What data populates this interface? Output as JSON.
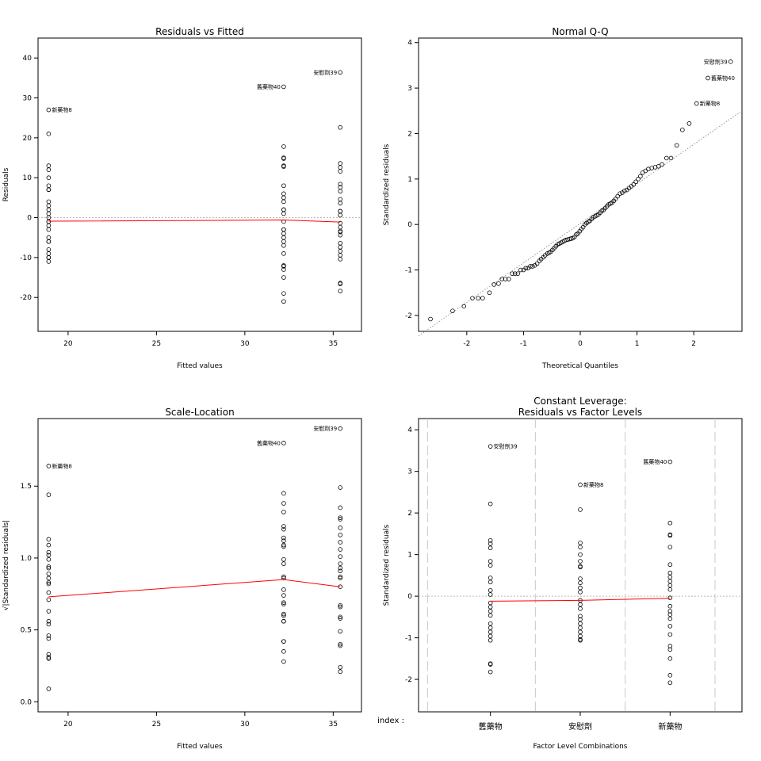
{
  "chart_data": [
    {
      "id": "rvf",
      "type": "scatter",
      "title": "Residuals vs Fitted",
      "xlabel": "Fitted values",
      "ylabel": "Residuals",
      "xlim": [
        18.3,
        36.6
      ],
      "ylim": [
        -28.5,
        45.0
      ],
      "xticks": [
        20,
        25,
        30,
        35
      ],
      "yticks": [
        -20,
        -10,
        0,
        10,
        20,
        30,
        40
      ],
      "refline": {
        "y": 0,
        "style": "dotted",
        "color": "#bbbbbb"
      },
      "series": [
        {
          "x": 18.9,
          "values": [
            27.0,
            21.0,
            13.0,
            12.0,
            10.0,
            8.0,
            7.0,
            7.0,
            4.0,
            3.0,
            2.0,
            1.0,
            0.0,
            -1.0,
            -1.0,
            -2.0,
            -3.0,
            -5.0,
            -6.0,
            -6.0,
            -8.0,
            -9.0,
            -10.0,
            -10.0,
            -11.0
          ]
        },
        {
          "x": 32.2,
          "values": [
            32.8,
            17.8,
            15.0,
            14.8,
            13.0,
            12.8,
            8.0,
            6.0,
            5.0,
            4.0,
            2.0,
            2.0,
            1.0,
            -1.0,
            -3.0,
            -3.0,
            -4.0,
            -5.0,
            -6.0,
            -7.0,
            -9.0,
            -12.0,
            -12.2,
            -13.0,
            -15.0,
            -19.0,
            -21.0
          ]
        },
        {
          "x": 35.4,
          "values": [
            36.4,
            22.6,
            13.6,
            12.6,
            11.6,
            8.4,
            7.6,
            6.6,
            4.6,
            3.6,
            1.6,
            1.6,
            0.6,
            -1.4,
            -2.4,
            -3.4,
            -3.6,
            -4.4,
            -6.4,
            -7.4,
            -8.4,
            -9.4,
            -10.4,
            -16.4,
            -16.6,
            -18.4
          ]
        }
      ],
      "smooth": {
        "x": [
          18.9,
          32.2,
          35.4
        ],
        "y": [
          -0.9,
          -0.6,
          -1.1
        ],
        "color": "#ff0000"
      },
      "labels": [
        {
          "text": "新藥物8",
          "x": 18.9,
          "y": 27.0,
          "side": "right"
        },
        {
          "text": "舊藥物40",
          "x": 32.2,
          "y": 32.8,
          "side": "left"
        },
        {
          "text": "安慰劑39",
          "x": 35.4,
          "y": 36.4,
          "side": "left"
        }
      ]
    },
    {
      "id": "qq",
      "type": "scatter",
      "title": "Normal Q-Q",
      "xlabel": "Theoretical Quantiles",
      "ylabel": "Standardized residuals",
      "xlim": [
        -2.85,
        2.85
      ],
      "ylim": [
        -2.35,
        4.1
      ],
      "xticks": [
        -2,
        -1,
        0,
        1,
        2
      ],
      "yticks": [
        -2,
        -1,
        0,
        1,
        2,
        3,
        4
      ],
      "series": [
        {
          "name": "",
          "points": [
            [
              -2.64,
              -2.08
            ],
            [
              -2.25,
              -1.9
            ],
            [
              -2.05,
              -1.8
            ],
            [
              -1.9,
              -1.62
            ],
            [
              -1.8,
              -1.62
            ],
            [
              -1.72,
              -1.62
            ],
            [
              -1.6,
              -1.5
            ],
            [
              -1.52,
              -1.32
            ],
            [
              -1.44,
              -1.3
            ],
            [
              -1.38,
              -1.2
            ],
            [
              -1.32,
              -1.2
            ],
            [
              -1.26,
              -1.2
            ],
            [
              -1.2,
              -1.08
            ],
            [
              -1.15,
              -1.08
            ],
            [
              -1.1,
              -1.08
            ],
            [
              -1.05,
              -1.0
            ],
            [
              -1.0,
              -1.0
            ],
            [
              -0.96,
              -0.96
            ],
            [
              -0.92,
              -0.96
            ],
            [
              -0.88,
              -0.92
            ],
            [
              -0.84,
              -0.92
            ],
            [
              -0.8,
              -0.9
            ],
            [
              -0.76,
              -0.86
            ],
            [
              -0.72,
              -0.8
            ],
            [
              -0.69,
              -0.76
            ],
            [
              -0.65,
              -0.72
            ],
            [
              -0.62,
              -0.68
            ],
            [
              -0.58,
              -0.64
            ],
            [
              -0.55,
              -0.62
            ],
            [
              -0.52,
              -0.6
            ],
            [
              -0.49,
              -0.56
            ],
            [
              -0.46,
              -0.52
            ],
            [
              -0.43,
              -0.48
            ],
            [
              -0.4,
              -0.44
            ],
            [
              -0.37,
              -0.42
            ],
            [
              -0.34,
              -0.4
            ],
            [
              -0.31,
              -0.38
            ],
            [
              -0.28,
              -0.36
            ],
            [
              -0.25,
              -0.34
            ],
            [
              -0.22,
              -0.33
            ],
            [
              -0.19,
              -0.32
            ],
            [
              -0.16,
              -0.31
            ],
            [
              -0.13,
              -0.3
            ],
            [
              -0.1,
              -0.27
            ],
            [
              -0.07,
              -0.22
            ],
            [
              -0.04,
              -0.2
            ],
            [
              -0.01,
              -0.15
            ],
            [
              0.02,
              -0.1
            ],
            [
              0.05,
              -0.06
            ],
            [
              0.08,
              0.0
            ],
            [
              0.11,
              0.03
            ],
            [
              0.14,
              0.06
            ],
            [
              0.17,
              0.08
            ],
            [
              0.2,
              0.12
            ],
            [
              0.23,
              0.16
            ],
            [
              0.26,
              0.18
            ],
            [
              0.29,
              0.2
            ],
            [
              0.32,
              0.22
            ],
            [
              0.35,
              0.26
            ],
            [
              0.38,
              0.3
            ],
            [
              0.41,
              0.32
            ],
            [
              0.44,
              0.36
            ],
            [
              0.47,
              0.4
            ],
            [
              0.5,
              0.44
            ],
            [
              0.53,
              0.46
            ],
            [
              0.56,
              0.48
            ],
            [
              0.59,
              0.52
            ],
            [
              0.62,
              0.56
            ],
            [
              0.66,
              0.62
            ],
            [
              0.7,
              0.68
            ],
            [
              0.74,
              0.7
            ],
            [
              0.78,
              0.74
            ],
            [
              0.82,
              0.76
            ],
            [
              0.86,
              0.8
            ],
            [
              0.9,
              0.84
            ],
            [
              0.94,
              0.88
            ],
            [
              0.98,
              0.94
            ],
            [
              1.02,
              1.0
            ],
            [
              1.06,
              1.06
            ],
            [
              1.1,
              1.14
            ],
            [
              1.15,
              1.18
            ],
            [
              1.2,
              1.22
            ],
            [
              1.26,
              1.24
            ],
            [
              1.32,
              1.26
            ],
            [
              1.38,
              1.28
            ],
            [
              1.44,
              1.32
            ],
            [
              1.52,
              1.46
            ],
            [
              1.6,
              1.46
            ],
            [
              1.7,
              1.74
            ],
            [
              1.8,
              2.08
            ],
            [
              1.92,
              2.22
            ],
            [
              2.05,
              2.66
            ],
            [
              2.25,
              3.22
            ],
            [
              2.65,
              3.58
            ]
          ]
        }
      ],
      "qqline": {
        "x": [
          -2.85,
          2.85
        ],
        "y": [
          -2.45,
          2.5
        ],
        "style": "dotted",
        "color": "#999999"
      },
      "labels": [
        {
          "text": "安慰劑39",
          "x": 2.65,
          "y": 3.58,
          "side": "left"
        },
        {
          "text": "舊藥物40",
          "x": 2.25,
          "y": 3.22,
          "side": "right"
        },
        {
          "text": "新藥物8",
          "x": 2.05,
          "y": 2.66,
          "side": "right"
        }
      ]
    },
    {
      "id": "sl",
      "type": "scatter",
      "title": "Scale-Location",
      "xlabel": "Fitted values",
      "ylabel": "√|Standardized residuals|",
      "xlim": [
        18.3,
        36.6
      ],
      "ylim": [
        -0.07,
        1.97
      ],
      "xticks": [
        20,
        25,
        30,
        35
      ],
      "yticks": [
        0.0,
        0.5,
        1.0,
        1.5
      ],
      "series": [
        {
          "x": 18.9,
          "values": [
            1.64,
            1.44,
            1.13,
            1.09,
            1.04,
            1.02,
            0.99,
            0.94,
            0.93,
            0.89,
            0.86,
            0.83,
            0.82,
            0.76,
            0.71,
            0.63,
            0.56,
            0.54,
            0.46,
            0.44,
            0.33,
            0.31,
            0.3,
            0.09
          ]
        },
        {
          "x": 32.2,
          "values": [
            1.8,
            1.45,
            1.38,
            1.32,
            1.22,
            1.2,
            1.14,
            1.12,
            1.09,
            1.08,
            0.99,
            0.96,
            0.87,
            0.86,
            0.78,
            0.74,
            0.69,
            0.68,
            0.61,
            0.6,
            0.56,
            0.56,
            0.42,
            0.42,
            0.35,
            0.28
          ]
        },
        {
          "x": 35.4,
          "values": [
            1.9,
            1.49,
            1.35,
            1.28,
            1.27,
            1.21,
            1.16,
            1.11,
            1.06,
            1.01,
            0.96,
            0.93,
            0.91,
            0.87,
            0.86,
            0.8,
            0.67,
            0.66,
            0.59,
            0.58,
            0.49,
            0.4,
            0.39,
            0.24,
            0.21
          ]
        }
      ],
      "smooth": {
        "x": [
          18.9,
          32.2,
          35.4
        ],
        "y": [
          0.73,
          0.85,
          0.8
        ],
        "color": "#ff0000"
      },
      "labels": [
        {
          "text": "新藥物8",
          "x": 18.9,
          "y": 1.64,
          "side": "right"
        },
        {
          "text": "舊藥物40",
          "x": 32.2,
          "y": 1.8,
          "side": "left"
        },
        {
          "text": "安慰劑39",
          "x": 35.4,
          "y": 1.9,
          "side": "left"
        }
      ]
    },
    {
      "id": "lev",
      "type": "scatter",
      "title": "Constant Leverage:",
      "subtitle": "Residuals vs Factor Levels",
      "xlabel": "Factor Level Combinations",
      "ylabel": "Standardized residuals",
      "index_label": "index :",
      "categories": [
        "舊藥物",
        "安慰劑",
        "新藥物"
      ],
      "xlim": [
        0.2,
        3.8
      ],
      "ylim": [
        -2.78,
        4.27
      ],
      "yticks": [
        -2,
        -1,
        0,
        1,
        2,
        3,
        4
      ],
      "vlines": [
        0.3,
        1.5,
        2.5,
        3.5
      ],
      "refline": {
        "y": 0,
        "style": "dotted",
        "color": "#bbbbbb"
      },
      "series": [
        {
          "category": "舊藥物",
          "values": [
            3.6,
            2.22,
            1.34,
            1.26,
            1.16,
            0.84,
            0.74,
            0.44,
            0.34,
            0.14,
            0.04,
            -0.16,
            -0.26,
            -0.36,
            -0.46,
            -0.66,
            -0.76,
            -0.86,
            -0.96,
            -1.06,
            -1.62,
            -1.64,
            -1.82
          ]
        },
        {
          "category": "安慰劑",
          "values": [
            2.68,
            2.08,
            1.28,
            1.18,
            1.0,
            0.84,
            0.72,
            0.7,
            0.42,
            0.32,
            0.2,
            0.1,
            -0.1,
            -0.2,
            -0.3,
            -0.48,
            -0.56,
            -0.66,
            -0.76,
            -0.86,
            -0.96,
            -1.04,
            -1.06
          ]
        },
        {
          "category": "新藥物",
          "values": [
            3.23,
            1.76,
            1.48,
            1.46,
            1.18,
            0.76,
            0.56,
            0.46,
            0.36,
            0.26,
            0.16,
            -0.04,
            -0.24,
            -0.36,
            -0.44,
            -0.54,
            -0.72,
            -0.92,
            -1.2,
            -1.28,
            -1.5,
            -1.9,
            -2.08
          ]
        }
      ],
      "smooth": {
        "x": [
          1,
          2,
          3
        ],
        "y": [
          -0.12,
          -0.1,
          -0.05
        ],
        "color": "#ff0000"
      },
      "labels": [
        {
          "text": "安慰劑39",
          "category": "舊藥物",
          "y": 3.6,
          "side": "right"
        },
        {
          "text": "新藥物8",
          "category": "安慰劑",
          "y": 2.68,
          "side": "right"
        },
        {
          "text": "舊藥物40",
          "category": "新藥物",
          "y": 3.23,
          "side": "left"
        }
      ]
    }
  ]
}
